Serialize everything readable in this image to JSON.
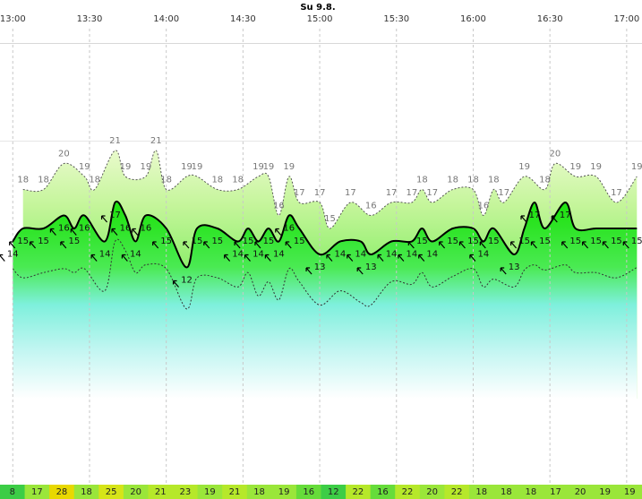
{
  "chart_data": {
    "type": "line",
    "title": "Su 9.8.",
    "xlim": [
      "12:55",
      "17:06"
    ],
    "ylim": [
      0,
      30
    ],
    "xticks": [
      "13:00",
      "13:30",
      "14:00",
      "14:30",
      "15:00",
      "15:30",
      "16:00",
      "16:30",
      "17:00"
    ],
    "series": [
      {
        "role": "gust",
        "color": "#555555",
        "dash": "dotted",
        "labels": true,
        "x": [
          "13:04",
          "13:12",
          "13:20",
          "13:28",
          "13:32",
          "13:40",
          "13:44",
          "13:52",
          "13:56",
          "14:00",
          "14:08",
          "14:12",
          "14:20",
          "14:28",
          "14:36",
          "14:40",
          "14:44",
          "14:48",
          "14:52",
          "15:00",
          "15:04",
          "15:12",
          "15:20",
          "15:28",
          "15:36",
          "15:40",
          "15:44",
          "15:52",
          "16:00",
          "16:04",
          "16:08",
          "16:12",
          "16:20",
          "16:28",
          "16:32",
          "16:40",
          "16:48",
          "16:56",
          "17:04"
        ],
        "values": [
          18,
          18,
          20,
          19,
          18,
          21,
          19,
          19,
          21,
          18,
          19,
          19,
          18,
          18,
          19,
          19,
          16,
          19,
          17,
          17,
          15,
          17,
          16,
          17,
          17,
          18,
          17,
          18,
          18,
          16,
          18,
          17,
          19,
          18,
          20,
          19,
          19,
          17,
          19
        ]
      },
      {
        "role": "mean",
        "color": "#000000",
        "dash": "solid",
        "labels": true,
        "x": [
          "13:00",
          "13:04",
          "13:12",
          "13:20",
          "13:24",
          "13:28",
          "13:36",
          "13:40",
          "13:44",
          "13:48",
          "13:52",
          "14:00",
          "14:08",
          "14:12",
          "14:20",
          "14:28",
          "14:32",
          "14:36",
          "14:40",
          "14:44",
          "14:48",
          "14:52",
          "15:00",
          "15:08",
          "15:16",
          "15:20",
          "15:28",
          "15:36",
          "15:40",
          "15:44",
          "15:52",
          "16:00",
          "16:04",
          "16:08",
          "16:16",
          "16:20",
          "16:24",
          "16:28",
          "16:36",
          "16:40",
          "16:48",
          "16:56",
          "17:04"
        ],
        "values": [
          14,
          15,
          15,
          16,
          15,
          16,
          14,
          17,
          16,
          14,
          16,
          15,
          12,
          15,
          15,
          14,
          15,
          14,
          15,
          14,
          16,
          15,
          13,
          14,
          14,
          13,
          14,
          14,
          15,
          14,
          15,
          15,
          14,
          15,
          13,
          15,
          17,
          15,
          17,
          15,
          15,
          15,
          15
        ]
      },
      {
        "role": "lower",
        "color": "#333333",
        "dash": "dotted",
        "labels": false,
        "x": [
          "13:00",
          "13:04",
          "13:12",
          "13:20",
          "13:24",
          "13:28",
          "13:36",
          "13:40",
          "13:44",
          "13:48",
          "13:52",
          "14:00",
          "14:08",
          "14:12",
          "14:20",
          "14:28",
          "14:32",
          "14:36",
          "14:40",
          "14:44",
          "14:48",
          "14:52",
          "15:00",
          "15:08",
          "15:16",
          "15:20",
          "15:28",
          "15:36",
          "15:40",
          "15:44",
          "15:52",
          "16:00",
          "16:04",
          "16:08",
          "16:16",
          "16:20",
          "16:24",
          "16:28",
          "16:36",
          "16:40",
          "16:48",
          "16:56",
          "17:04"
        ],
        "values": [
          11.9,
          11.2,
          11.6,
          11.9,
          11.6,
          11.9,
          10.2,
          14,
          13.3,
          11.6,
          12.2,
          11.9,
          8.8,
          11.2,
          11.2,
          10.5,
          11.6,
          9.8,
          10.9,
          9.5,
          11.9,
          10.9,
          9.1,
          10.2,
          9.3,
          9.1,
          10.9,
          10.7,
          11.6,
          10.5,
          11.3,
          11.9,
          10.5,
          11.1,
          10.5,
          11.8,
          12.2,
          11.8,
          12.2,
          11.6,
          11.6,
          11.2,
          12
        ]
      }
    ],
    "bottom_values": [
      8,
      17,
      28,
      18,
      25,
      20,
      21,
      23,
      19,
      21,
      18,
      19,
      16,
      12,
      22,
      16,
      22,
      20,
      22,
      18,
      18,
      18,
      17,
      20,
      19,
      19
    ]
  }
}
